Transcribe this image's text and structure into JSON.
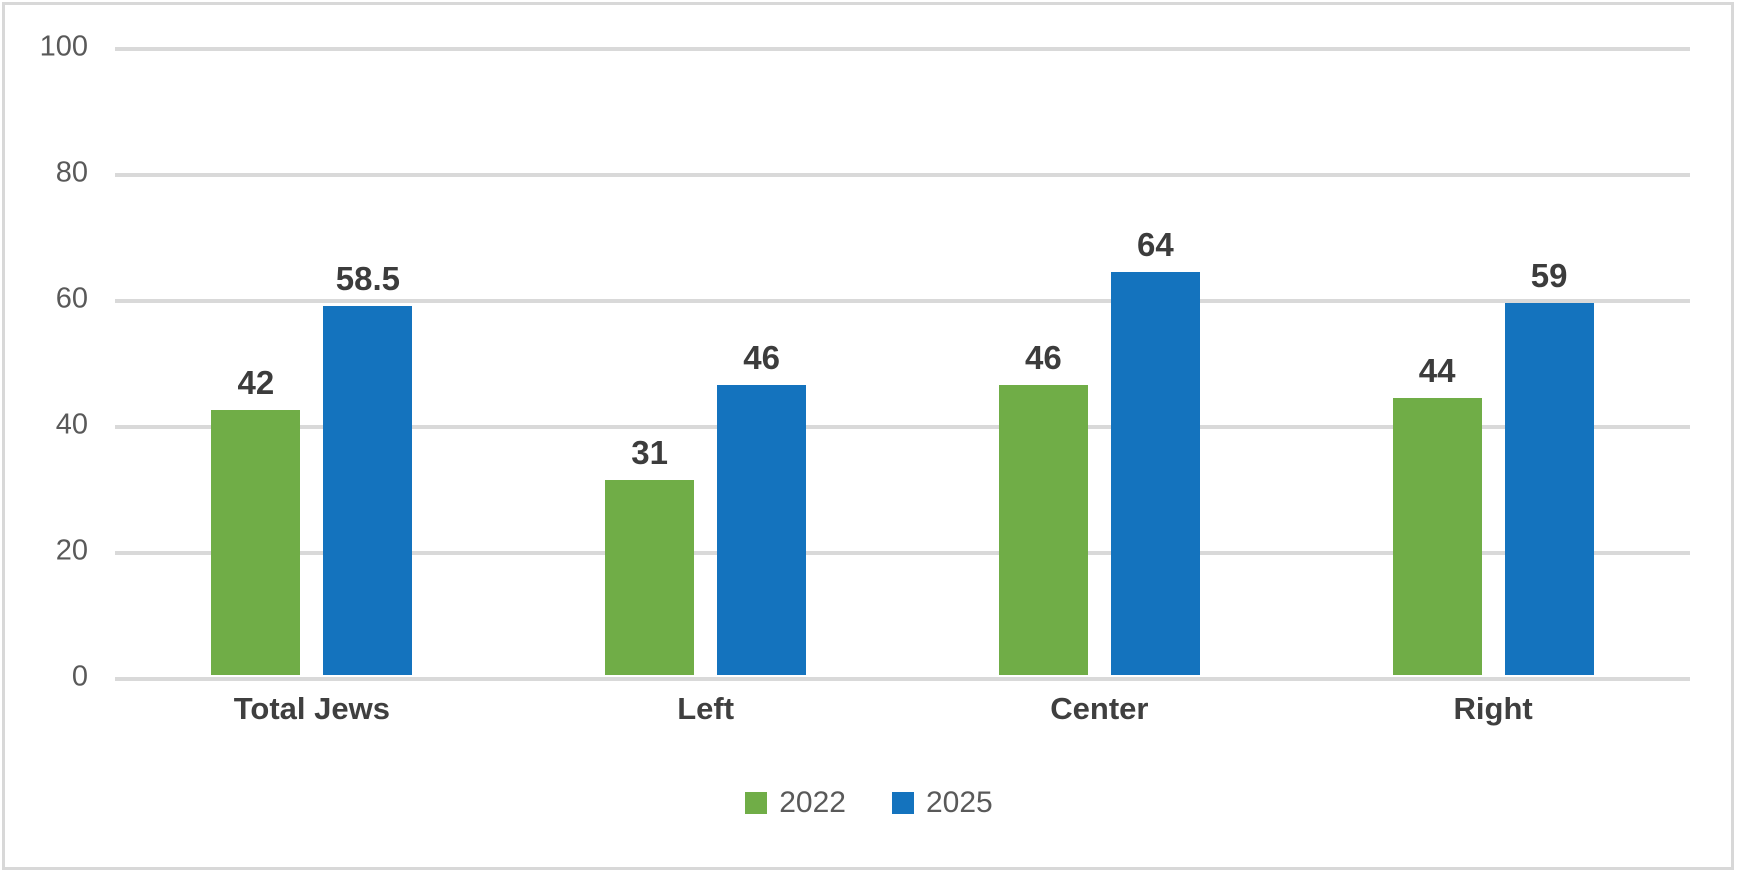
{
  "chart_data": {
    "type": "bar",
    "title": "",
    "xlabel": "",
    "ylabel": "",
    "categories": [
      "Total Jews",
      "Left",
      "Center",
      "Right"
    ],
    "series": [
      {
        "name": "2022",
        "color": "#70AD47",
        "values": [
          42,
          31,
          46,
          44
        ]
      },
      {
        "name": "2025",
        "color": "#1473BE",
        "values": [
          58.5,
          46,
          64,
          59
        ]
      }
    ],
    "data_labels": [
      [
        "42",
        "31",
        "46",
        "44"
      ],
      [
        "58.5",
        "46",
        "64",
        "59"
      ]
    ],
    "ylim": [
      0,
      100
    ],
    "y_ticks": [
      0,
      20,
      40,
      60,
      80,
      100
    ],
    "grid": true,
    "legend_position": "bottom"
  },
  "colors": {
    "gridline": "#d9d9d9",
    "frame_border": "#d8d8d8",
    "tick_text": "#595959",
    "value_label_text": "#3c3c3c",
    "category_text": "#3f3f3f",
    "legend_text": "#595959",
    "background": "#ffffff"
  }
}
